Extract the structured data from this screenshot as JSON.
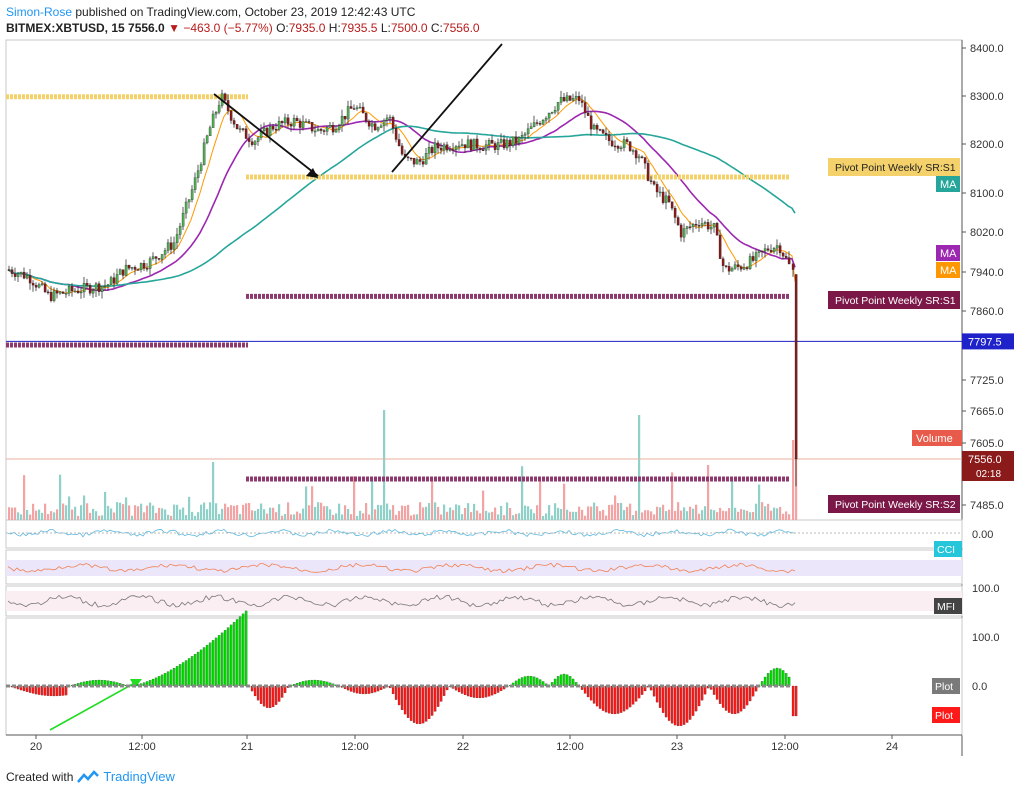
{
  "header": {
    "author": "Simon-Rose",
    "published": "published on TradingView.com, October 23, 2019 12:42:43 UTC",
    "symbol": "BITMEX:XBTUSD, 15",
    "last": "7556.0",
    "change": "−463.0 (−5.77%)",
    "ohlc": [
      {
        "k": "O:",
        "v": "7935.0"
      },
      {
        "k": "H:",
        "v": "7935.5"
      },
      {
        "k": "L:",
        "v": "7500.0"
      },
      {
        "k": "C:",
        "v": "7556.0"
      }
    ]
  },
  "footer": {
    "created": "Created with",
    "brand": "TradingView"
  },
  "colors": {
    "up": "#4caf50",
    "down": "#8b1a1a",
    "ma_teal": "#26a69a",
    "ma_purple": "#9c27b0",
    "ma_orange": "#ff9800",
    "pivot_yellow": "#f5d16b",
    "pivot_maroon": "#8e3a6e",
    "blue_line": "#1e22c8",
    "volume_up": "#8fd0c8",
    "volume_down": "#f2a4a4",
    "osc_green": "#00e000",
    "osc_red": "#ff1a1a"
  },
  "chart_data": {
    "type": "candlestick",
    "x_tick_labels": [
      "20",
      "12:00",
      "21",
      "12:00",
      "22",
      "12:00",
      "23",
      "12:00",
      "24"
    ],
    "price_axis_labels": [
      "8400.0",
      "8300.0",
      "8200.0",
      "8100.0",
      "8020.0",
      "7940.0",
      "7860.0",
      "7725.0",
      "7665.0",
      "7605.0",
      "7485.0"
    ],
    "price_key_points": [
      {
        "t": 0,
        "p": 7945
      },
      {
        "t": 20,
        "p": 7930
      },
      {
        "t": 40,
        "p": 7890
      },
      {
        "t": 60,
        "p": 7900
      },
      {
        "t": 100,
        "p": 7915
      },
      {
        "t": 115,
        "p": 7945
      },
      {
        "t": 140,
        "p": 7960
      },
      {
        "t": 165,
        "p": 8000
      },
      {
        "t": 185,
        "p": 8120
      },
      {
        "t": 200,
        "p": 8230
      },
      {
        "t": 212,
        "p": 8300
      },
      {
        "t": 230,
        "p": 8230
      },
      {
        "t": 245,
        "p": 8210
      },
      {
        "t": 265,
        "p": 8240
      },
      {
        "t": 285,
        "p": 8250
      },
      {
        "t": 310,
        "p": 8230
      },
      {
        "t": 325,
        "p": 8240
      },
      {
        "t": 345,
        "p": 8280
      },
      {
        "t": 365,
        "p": 8240
      },
      {
        "t": 380,
        "p": 8260
      },
      {
        "t": 395,
        "p": 8170
      },
      {
        "t": 410,
        "p": 8165
      },
      {
        "t": 425,
        "p": 8195
      },
      {
        "t": 450,
        "p": 8205
      },
      {
        "t": 470,
        "p": 8200
      },
      {
        "t": 490,
        "p": 8200
      },
      {
        "t": 510,
        "p": 8210
      },
      {
        "t": 530,
        "p": 8250
      },
      {
        "t": 550,
        "p": 8290
      },
      {
        "t": 570,
        "p": 8295
      },
      {
        "t": 585,
        "p": 8230
      },
      {
        "t": 600,
        "p": 8210
      },
      {
        "t": 620,
        "p": 8200
      },
      {
        "t": 630,
        "p": 8180
      },
      {
        "t": 645,
        "p": 8110
      },
      {
        "t": 660,
        "p": 8080
      },
      {
        "t": 672,
        "p": 8020
      },
      {
        "t": 690,
        "p": 8045
      },
      {
        "t": 705,
        "p": 8030
      },
      {
        "t": 715,
        "p": 7945
      },
      {
        "t": 730,
        "p": 7950
      },
      {
        "t": 745,
        "p": 7965
      },
      {
        "t": 760,
        "p": 7990
      },
      {
        "t": 770,
        "p": 7995
      },
      {
        "t": 782,
        "p": 7945
      },
      {
        "t": 786,
        "p": 7556
      }
    ],
    "last_price": 7556.0,
    "blue_level": 7797.5,
    "pivot_levels": [
      {
        "label": "Pivot Point Weekly SR:S1",
        "price": 8135,
        "color": "#f5d16b",
        "label_color": "#f5d16b",
        "text_color": "#222"
      },
      {
        "label": "Pivot Point Weekly SR:S1",
        "price": 7890,
        "color": "#8e3a6e",
        "label_color": "#7b1848",
        "text_color": "#ffffff"
      },
      {
        "label": "Pivot Point Weekly SR:S2",
        "price": 7515,
        "color": "#8e3a6e",
        "label_color": "#7b1848",
        "text_color": "#ffffff"
      }
    ],
    "prior_pivots": [
      {
        "price": 8300,
        "color": "#f5d16b"
      },
      {
        "price": 7790,
        "color": "#8e3a6e"
      }
    ],
    "overlay_tags": [
      "MA",
      "MA",
      "MA",
      "Volume"
    ],
    "indicator_tags": [
      "CCI",
      "MFI",
      "Plot",
      "Plot"
    ],
    "indicator_axis_labels": [
      "0.00",
      "100.0",
      "100.0",
      "0.0"
    ],
    "series": [
      {
        "name": "MA",
        "role": "MA teal"
      },
      {
        "name": "MA",
        "role": "MA purple"
      },
      {
        "name": "MA",
        "role": "MA orange"
      },
      {
        "name": "Volume"
      }
    ]
  }
}
